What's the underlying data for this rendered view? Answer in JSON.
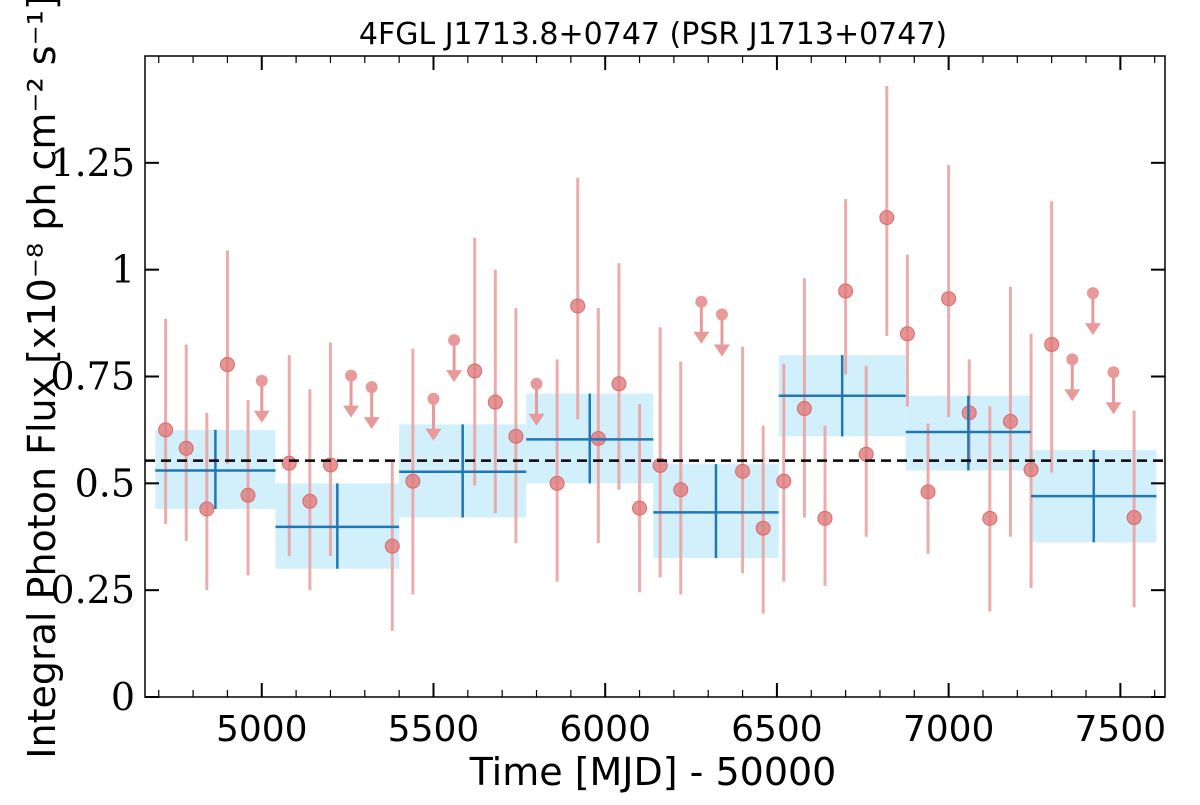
{
  "chart_data": {
    "type": "scatter",
    "title": "4FGL J1713.8+0747 (PSR J1713+0747)",
    "xlabel": "Time [MJD] - 50000",
    "ylabel": "Integral Photon Flux [x10⁻⁸ ph cm⁻² s⁻¹]",
    "xlim": [
      4660,
      7630
    ],
    "ylim": [
      0,
      1.5
    ],
    "xticks": [
      5000,
      5500,
      6000,
      6500,
      7000,
      7500
    ],
    "xtick_labels": [
      "5000",
      "5500",
      "6000",
      "6500",
      "7000",
      "7500"
    ],
    "yticks": [
      0,
      0.25,
      0.5,
      0.75,
      1.0,
      1.25
    ],
    "ytick_labels": [
      "0",
      "0.25",
      "0.5",
      "0.75",
      "1",
      "1.25"
    ],
    "mean_flux": 0.553,
    "series": [
      {
        "kind": "short-bin-detections",
        "points": [
          {
            "x": 4720,
            "y": 0.625,
            "ylo": 0.405,
            "yhi": 0.885
          },
          {
            "x": 4780,
            "y": 0.582,
            "ylo": 0.365,
            "yhi": 0.825
          },
          {
            "x": 4840,
            "y": 0.44,
            "ylo": 0.25,
            "yhi": 0.665
          },
          {
            "x": 4900,
            "y": 0.778,
            "ylo": 0.545,
            "yhi": 1.045
          },
          {
            "x": 4960,
            "y": 0.472,
            "ylo": 0.285,
            "yhi": 0.695
          },
          {
            "x": 5080,
            "y": 0.547,
            "ylo": 0.33,
            "yhi": 0.8
          },
          {
            "x": 5140,
            "y": 0.458,
            "ylo": 0.25,
            "yhi": 0.72
          },
          {
            "x": 5200,
            "y": 0.543,
            "ylo": 0.33,
            "yhi": 0.83
          },
          {
            "x": 5380,
            "y": 0.353,
            "ylo": 0.155,
            "yhi": 0.555
          },
          {
            "x": 5440,
            "y": 0.505,
            "ylo": 0.24,
            "yhi": 0.815
          },
          {
            "x": 5620,
            "y": 0.763,
            "ylo": 0.495,
            "yhi": 1.075
          },
          {
            "x": 5680,
            "y": 0.69,
            "ylo": 0.43,
            "yhi": 1.0
          },
          {
            "x": 5740,
            "y": 0.61,
            "ylo": 0.36,
            "yhi": 0.91
          },
          {
            "x": 5860,
            "y": 0.5,
            "ylo": 0.27,
            "yhi": 0.79
          },
          {
            "x": 5920,
            "y": 0.915,
            "ylo": 0.65,
            "yhi": 1.215
          },
          {
            "x": 5980,
            "y": 0.605,
            "ylo": 0.36,
            "yhi": 0.91
          },
          {
            "x": 6040,
            "y": 0.733,
            "ylo": 0.485,
            "yhi": 1.015
          },
          {
            "x": 6100,
            "y": 0.442,
            "ylo": 0.245,
            "yhi": 0.685
          },
          {
            "x": 6160,
            "y": 0.542,
            "ylo": 0.28,
            "yhi": 0.865
          },
          {
            "x": 6220,
            "y": 0.485,
            "ylo": 0.24,
            "yhi": 0.785
          },
          {
            "x": 6400,
            "y": 0.528,
            "ylo": 0.29,
            "yhi": 0.82
          },
          {
            "x": 6460,
            "y": 0.395,
            "ylo": 0.195,
            "yhi": 0.635
          },
          {
            "x": 6520,
            "y": 0.505,
            "ylo": 0.27,
            "yhi": 0.78
          },
          {
            "x": 6580,
            "y": 0.675,
            "ylo": 0.42,
            "yhi": 0.98
          },
          {
            "x": 6640,
            "y": 0.418,
            "ylo": 0.26,
            "yhi": 0.635
          },
          {
            "x": 6700,
            "y": 0.95,
            "ylo": 0.755,
            "yhi": 1.165
          },
          {
            "x": 6760,
            "y": 0.568,
            "ylo": 0.375,
            "yhi": 0.775
          },
          {
            "x": 6820,
            "y": 1.122,
            "ylo": 0.845,
            "yhi": 1.43
          },
          {
            "x": 6880,
            "y": 0.85,
            "ylo": 0.68,
            "yhi": 1.035
          },
          {
            "x": 6940,
            "y": 0.48,
            "ylo": 0.335,
            "yhi": 0.64
          },
          {
            "x": 7000,
            "y": 0.932,
            "ylo": 0.655,
            "yhi": 1.245
          },
          {
            "x": 7060,
            "y": 0.665,
            "ylo": 0.545,
            "yhi": 0.79
          },
          {
            "x": 7120,
            "y": 0.418,
            "ylo": 0.2,
            "yhi": 0.68
          },
          {
            "x": 7180,
            "y": 0.645,
            "ylo": 0.375,
            "yhi": 0.96
          },
          {
            "x": 7240,
            "y": 0.532,
            "ylo": 0.255,
            "yhi": 0.85
          },
          {
            "x": 7300,
            "y": 0.825,
            "ylo": 0.525,
            "yhi": 1.16
          },
          {
            "x": 7540,
            "y": 0.42,
            "ylo": 0.21,
            "yhi": 0.67
          }
        ]
      },
      {
        "kind": "short-bin-upper-limits",
        "points": [
          {
            "x": 5000,
            "y": 0.74
          },
          {
            "x": 5260,
            "y": 0.752
          },
          {
            "x": 5320,
            "y": 0.725
          },
          {
            "x": 5500,
            "y": 0.698
          },
          {
            "x": 5560,
            "y": 0.835
          },
          {
            "x": 5800,
            "y": 0.733
          },
          {
            "x": 6280,
            "y": 0.925
          },
          {
            "x": 6340,
            "y": 0.895
          },
          {
            "x": 7360,
            "y": 0.79
          },
          {
            "x": 7420,
            "y": 0.945
          },
          {
            "x": 7480,
            "y": 0.76
          }
        ]
      },
      {
        "kind": "long-bin-fluxes",
        "bins": [
          {
            "x0": 4690,
            "x1": 5040,
            "y": 0.53,
            "ylo": 0.44,
            "yhi": 0.625
          },
          {
            "x0": 5040,
            "x1": 5400,
            "y": 0.398,
            "ylo": 0.3,
            "yhi": 0.5
          },
          {
            "x0": 5400,
            "x1": 5770,
            "y": 0.527,
            "ylo": 0.42,
            "yhi": 0.638
          },
          {
            "x0": 5770,
            "x1": 6140,
            "y": 0.603,
            "ylo": 0.5,
            "yhi": 0.71
          },
          {
            "x0": 6140,
            "x1": 6505,
            "y": 0.432,
            "ylo": 0.325,
            "yhi": 0.545
          },
          {
            "x0": 6505,
            "x1": 6875,
            "y": 0.705,
            "ylo": 0.61,
            "yhi": 0.8
          },
          {
            "x0": 6875,
            "x1": 7240,
            "y": 0.62,
            "ylo": 0.53,
            "yhi": 0.705
          },
          {
            "x0": 7240,
            "x1": 7605,
            "y": 0.47,
            "ylo": 0.362,
            "yhi": 0.578
          }
        ]
      }
    ],
    "colors": {
      "points": "#e07b7b",
      "errorbars": "#e9a3a3",
      "upper_limits": "#e89a9a",
      "bins_fill": "#cdeefc",
      "bins_line": "#1f77b4",
      "mean_line": "#000000"
    },
    "grid": false,
    "legend": "none"
  }
}
